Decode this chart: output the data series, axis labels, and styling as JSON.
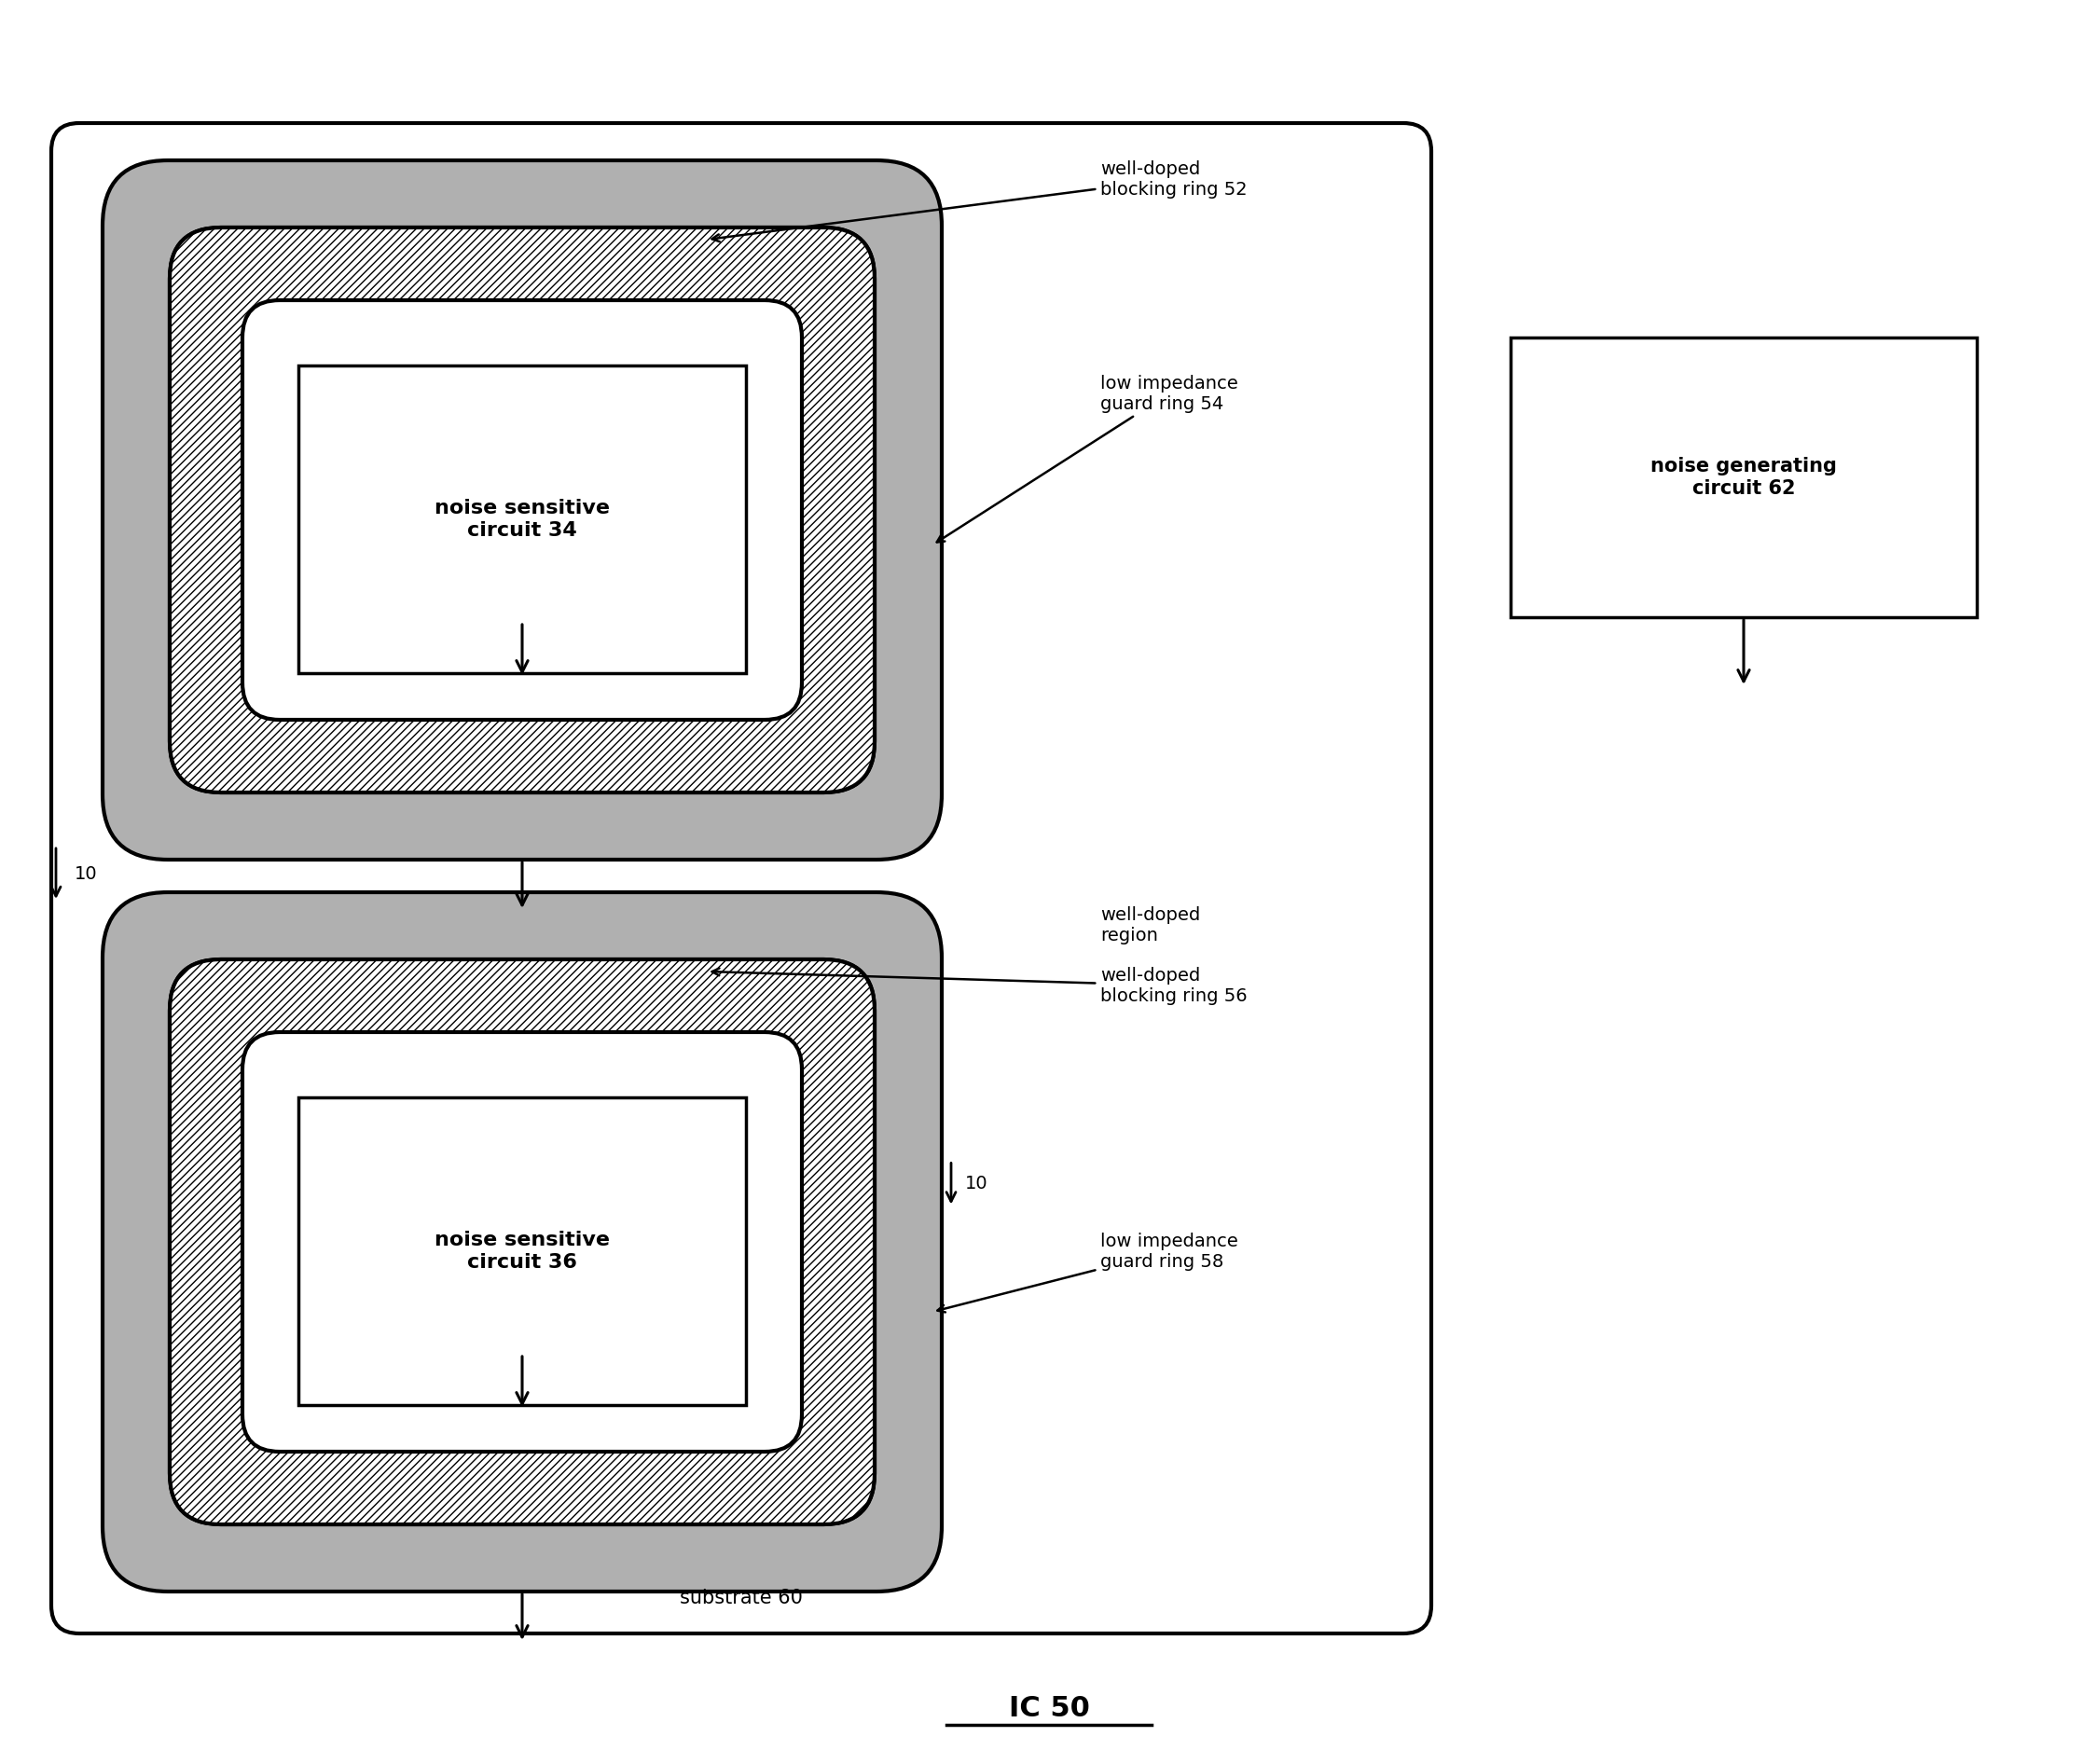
{
  "bg_color": "#ffffff",
  "border_color": "#000000",
  "title": "IC 50",
  "substrate_label": "substrate 60",
  "well_doped_label": "well-doped\nregion",
  "noise_gen_label": "noise generating\ncircuit 62",
  "circuit1_label": "noise sensitive\ncircuit 34",
  "circuit2_label": "noise sensitive\ncircuit 36",
  "blocking_ring1_label": "well-doped\nblocking ring 52",
  "guard_ring1_label": "low impedance\nguard ring 54",
  "blocking_ring2_label": "well-doped\nblocking ring 56",
  "guard_ring2_label": "low impedance\nguard ring 58",
  "label_10_1": "10",
  "label_10_2": "10",
  "dot_color": "#b0b0b0",
  "hatch_color": "#555555"
}
